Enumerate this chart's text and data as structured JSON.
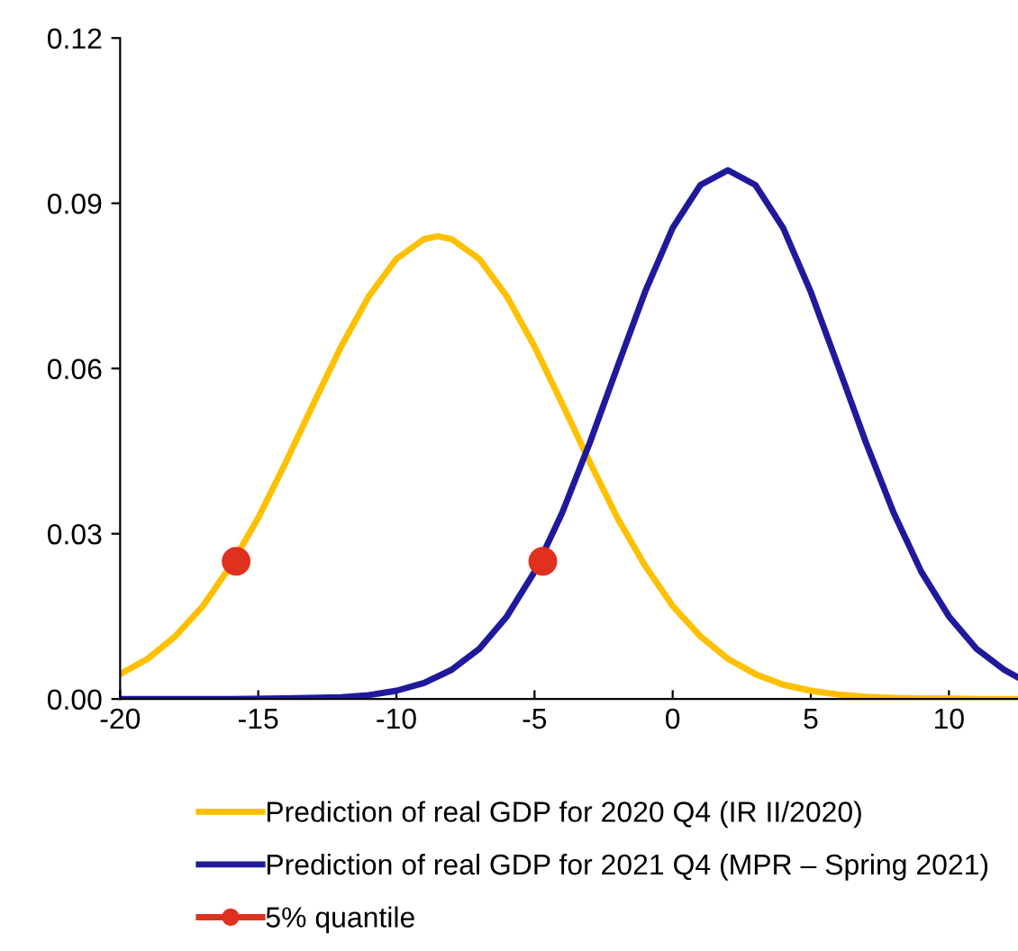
{
  "chart_data": {
    "type": "line",
    "xlim": [
      -20,
      12.5
    ],
    "xticks": [
      -20,
      -15,
      -10,
      -5,
      0,
      5,
      10
    ],
    "ylim": [
      0,
      0.12
    ],
    "yticks": [
      {
        "value": 0,
        "label": "0.00"
      },
      {
        "value": 0.03,
        "label": "0.03"
      },
      {
        "value": 0.06,
        "label": "0.06"
      },
      {
        "value": 0.09,
        "label": "0.09"
      },
      {
        "value": 0.12,
        "label": "0.12"
      }
    ],
    "grid": false,
    "legend": "bottom",
    "marker": "none",
    "line_style": "solid",
    "series": [
      {
        "name": "Prediction of real GDP for 2020 Q4 (IR II/2020)",
        "color": "#ffc000",
        "x": [
          -20,
          -19,
          -18,
          -17,
          -16,
          -15,
          -14,
          -13,
          -12,
          -11,
          -10,
          -9,
          -8.5,
          -8,
          -7,
          -6,
          -5,
          -4,
          -3,
          -2,
          -1,
          0,
          1,
          2,
          3,
          4,
          5,
          6,
          7,
          8,
          9,
          10,
          11,
          12,
          12.5
        ],
        "values": [
          0.0045,
          0.0073,
          0.0114,
          0.0169,
          0.0242,
          0.0329,
          0.043,
          0.0536,
          0.064,
          0.0731,
          0.0799,
          0.0835,
          0.084,
          0.0835,
          0.0799,
          0.0731,
          0.064,
          0.0536,
          0.043,
          0.0329,
          0.0242,
          0.0169,
          0.0114,
          0.0073,
          0.0045,
          0.0026,
          0.0015,
          0.0008,
          0.0004,
          0.0002,
          0.0001,
          0.0001,
          0.0,
          0.0,
          0.0
        ]
      },
      {
        "name": "Prediction of real GDP for 2021 Q4 (MPR – Spring 2021)",
        "color": "#1f1a9c",
        "x": [
          -20,
          -16,
          -14,
          -12,
          -11,
          -10,
          -9,
          -8,
          -7,
          -6,
          -5,
          -4,
          -3,
          -2,
          -1,
          0,
          1,
          2,
          3,
          4,
          5,
          6,
          7,
          8,
          9,
          10,
          11,
          12,
          12.5
        ],
        "values": [
          0.0,
          0.0,
          0.0001,
          0.0003,
          0.0007,
          0.0015,
          0.0029,
          0.0053,
          0.0091,
          0.015,
          0.0231,
          0.0338,
          0.0465,
          0.0603,
          0.0739,
          0.0855,
          0.0933,
          0.096,
          0.0933,
          0.0855,
          0.0739,
          0.0603,
          0.0465,
          0.0338,
          0.0231,
          0.015,
          0.0091,
          0.0053,
          0.0039
        ]
      },
      {
        "name": "5% quantile",
        "color": "#e0301e",
        "type": "scatter",
        "marker": "circle",
        "x": [
          -15.8,
          -4.7
        ],
        "values": [
          0.025,
          0.025
        ]
      }
    ]
  }
}
